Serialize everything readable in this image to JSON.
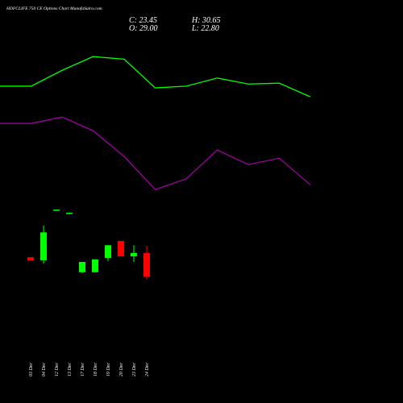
{
  "chart_data": [
    {
      "type": "candlestick",
      "title": "HDFCLIFE 750 CE Options Chart MunafaSutra.com",
      "ohlc_labels": [
        "C: 23.45",
        "H: 30.65",
        "O: 29.00",
        "L: 22.80"
      ],
      "categories": [
        "03 Dec",
        "04 Dec",
        "12 Dec",
        "13 Dec",
        "17 Dec",
        "18 Dec",
        "19 Dec",
        "20 Dec",
        "23 Dec",
        "24 Dec"
      ],
      "open": [
        28.0,
        27.3,
        39.1,
        38.4,
        24.5,
        24.5,
        27.8,
        31.8,
        28.2,
        29.0
      ],
      "high": [
        28.0,
        35.4,
        39.1,
        38.4,
        26.9,
        27.5,
        30.8,
        31.8,
        30.8,
        30.65
      ],
      "low": [
        27.3,
        26.5,
        39.1,
        38.4,
        24.3,
        24.5,
        27.1,
        28.2,
        26.9,
        22.8
      ],
      "close": [
        27.3,
        33.8,
        39.1,
        38.4,
        26.9,
        27.5,
        30.8,
        28.2,
        29.0,
        23.45
      ],
      "up_color": "#00ff00",
      "down_color": "#ff0000",
      "ylim": [
        -6,
        88
      ]
    },
    {
      "type": "line",
      "categories": [
        null,
        null,
        null,
        null,
        null,
        null,
        null,
        null,
        null,
        null,
        null
      ],
      "series": [
        {
          "color": "#00ff00",
          "values": [
            67.9,
            67.9,
            71.6,
            74.8,
            74.2,
            67.5,
            67.9,
            69.8,
            68.4,
            68.6,
            65.4
          ]
        },
        {
          "color": "#a000a0",
          "values": [
            59.2,
            59.2,
            60.7,
            57.5,
            51.5,
            43.8,
            46.3,
            53.0,
            49.6,
            51.1,
            44.9
          ]
        }
      ],
      "ylim": [
        -6,
        88
      ]
    }
  ]
}
